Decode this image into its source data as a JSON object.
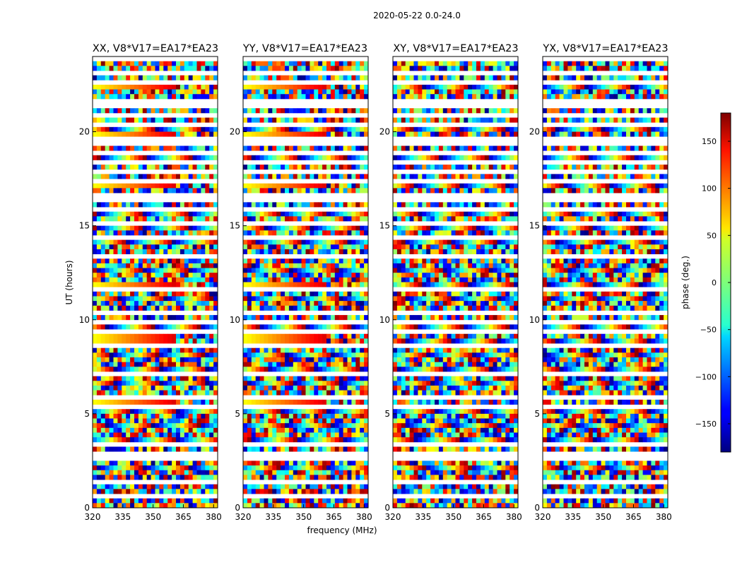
{
  "chart_data": {
    "type": "heatmap",
    "suptitle": "2020-05-22 0.0-24.0",
    "xlabel": "frequency (MHz)",
    "ylabel": "UT (hours)",
    "xlim": [
      320,
      382
    ],
    "ylim": [
      0,
      24
    ],
    "xticks": [
      320,
      335,
      350,
      365,
      380
    ],
    "yticks": [
      0,
      5,
      10,
      15,
      20
    ],
    "panels": [
      {
        "title": "XX, V8*V17=EA17*EA23"
      },
      {
        "title": "YY, V8*V17=EA17*EA23"
      },
      {
        "title": "XY, V8*V17=EA17*EA23"
      },
      {
        "title": "YX, V8*V17=EA17*EA23"
      }
    ],
    "colorbar": {
      "label": "phase (deg.)",
      "range": [
        -180,
        180
      ],
      "ticks": [
        -150,
        -100,
        -50,
        0,
        50,
        100,
        150
      ],
      "tick_labels": [
        "−150",
        "−100",
        "−50",
        "0",
        "50",
        "100",
        "150"
      ],
      "colormap": "jet"
    },
    "flagged_gaps_hours": [
      0.55,
      1.0,
      1.4,
      2.0,
      2.55,
      2.85,
      3.3,
      3.5,
      5.3,
      5.45,
      5.8,
      6.0,
      6.5,
      7.1,
      7.5,
      8.6,
      9.0,
      9.3,
      9.9,
      10.3,
      11.7,
      12.0,
      13.0,
      13.3,
      14.3,
      15.2,
      15.8,
      16.3,
      16.7,
      17.3,
      17.8,
      18.3,
      18.9,
      19.3,
      19.7,
      20.0,
      20.4,
      20.9,
      21.3,
      21.6,
      22.0,
      22.7,
      23.2,
      23.5,
      23.8
    ],
    "bright_rows_hours": [
      2.7,
      5.5,
      9.0,
      11.95,
      17.2,
      19.75,
      20.9,
      22.4
    ]
  }
}
